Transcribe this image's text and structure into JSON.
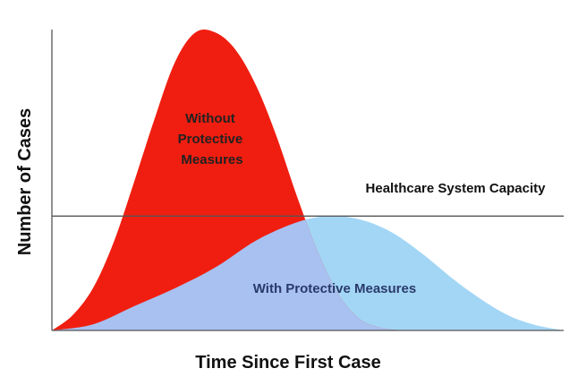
{
  "chart_data": {
    "type": "area",
    "title": "",
    "xlabel": "Time Since First Case",
    "ylabel": "Number of Cases",
    "xlim": [
      0,
      100
    ],
    "ylim": [
      0,
      100
    ],
    "grid": false,
    "legend": "none",
    "series": [
      {
        "name": "Without Protective Measures",
        "label_lines": [
          "Without",
          "Protective",
          "Measures"
        ],
        "color": "#f01e10",
        "x": [
          0,
          4,
          8,
          12,
          16,
          20,
          24,
          28,
          32,
          36,
          40,
          44,
          48,
          52,
          56,
          60,
          64,
          68
        ],
        "values": [
          0,
          5,
          14,
          29,
          49,
          70,
          89,
          99,
          99,
          93,
          81,
          64,
          44,
          26,
          12,
          4,
          1,
          0
        ]
      },
      {
        "name": "With Protective Measures",
        "label_lines": [
          "With Protective Measures"
        ],
        "color": "#a3d6f5",
        "x": [
          0,
          8,
          16,
          24,
          32,
          40,
          48,
          54,
          60,
          66,
          72,
          80,
          88,
          94,
          100
        ],
        "values": [
          0,
          2,
          8,
          14,
          21,
          30,
          36,
          38,
          37,
          33,
          26,
          15,
          6,
          2,
          0
        ]
      }
    ],
    "reference_line": {
      "label": "Healthcare System Capacity",
      "value": 38
    },
    "overlap_color": "#a8c1f0",
    "line_color": "#555555"
  }
}
